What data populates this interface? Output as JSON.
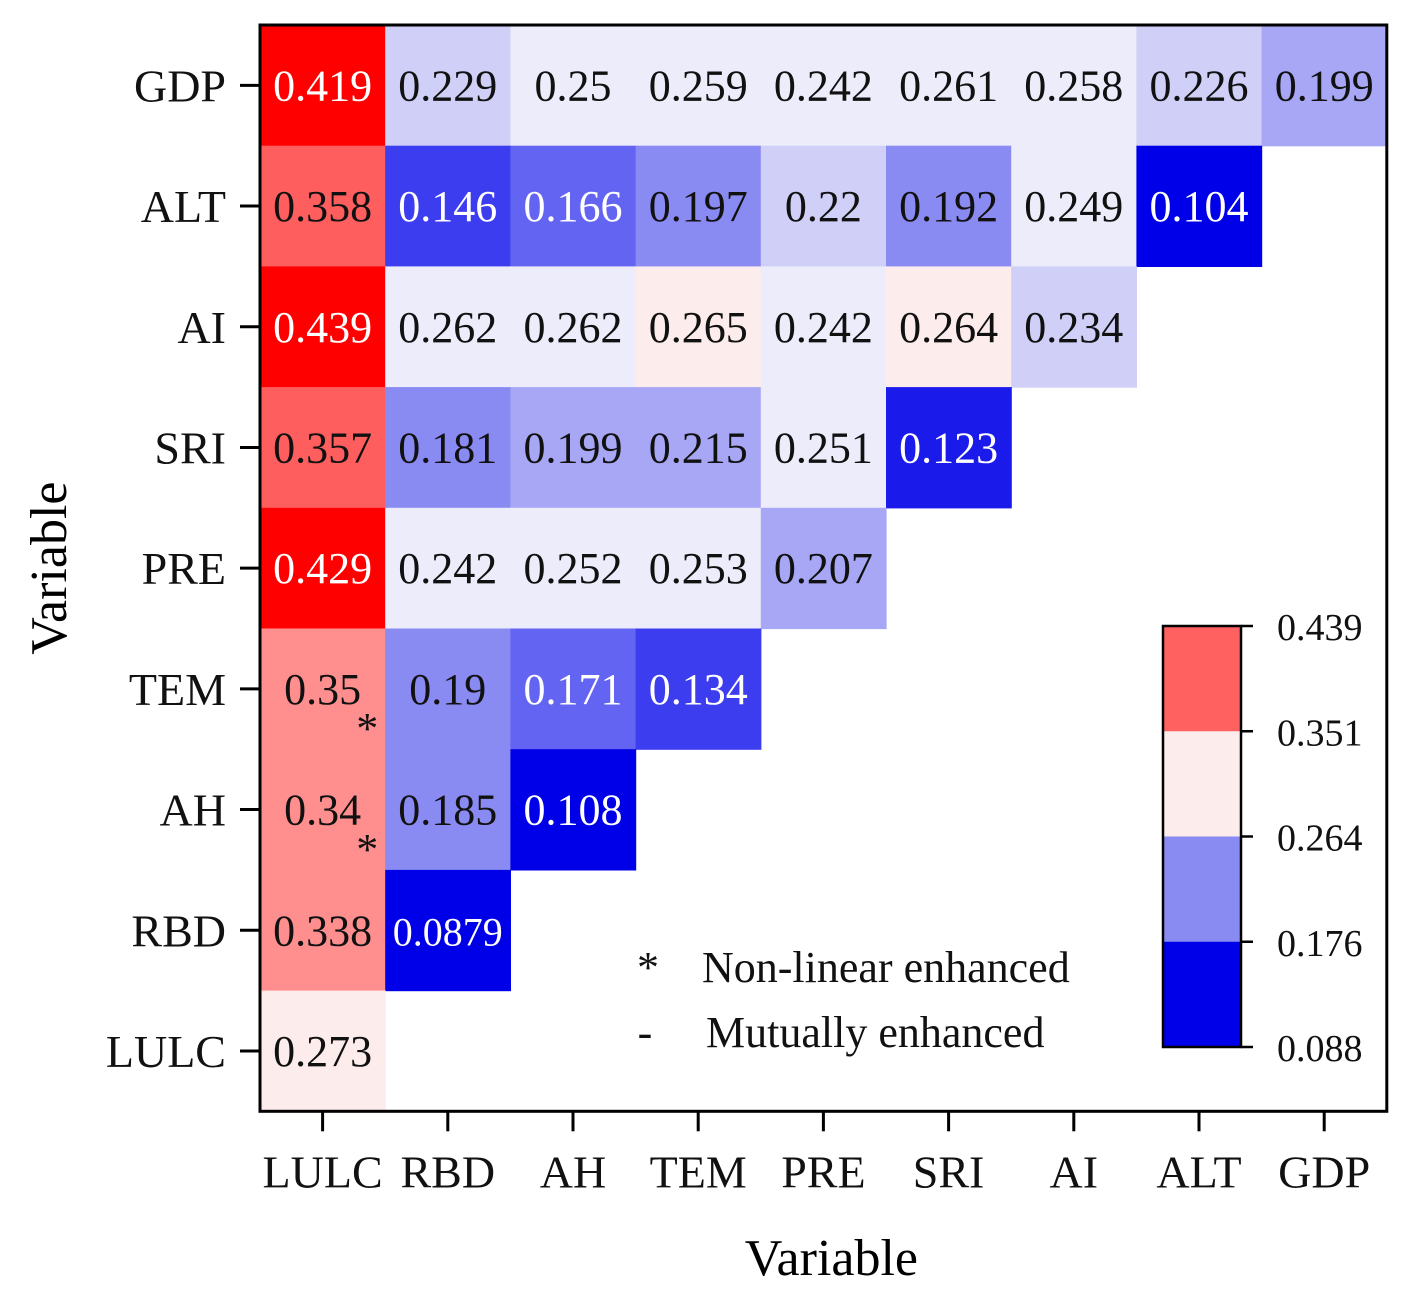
{
  "chart_data": {
    "type": "heatmap",
    "x_label": "Variable",
    "y_label": "Variable",
    "x_categories": [
      "LULC",
      "RBD",
      "AH",
      "TEM",
      "PRE",
      "SRI",
      "AI",
      "ALT",
      "GDP"
    ],
    "y_categories": [
      "GDP",
      "ALT",
      "AI",
      "SRI",
      "PRE",
      "TEM",
      "AH",
      "RBD",
      "LULC"
    ],
    "cells": [
      {
        "row": "GDP",
        "col": "LULC",
        "value": 0.419,
        "label": "0.419",
        "color": "#ff0000",
        "light_text": true
      },
      {
        "row": "GDP",
        "col": "RBD",
        "value": 0.229,
        "label": "0.229",
        "color": "#cfcff8"
      },
      {
        "row": "GDP",
        "col": "AH",
        "value": 0.25,
        "label": "0.25",
        "color": "#ececfb"
      },
      {
        "row": "GDP",
        "col": "TEM",
        "value": 0.259,
        "label": "0.259",
        "color": "#ececfb"
      },
      {
        "row": "GDP",
        "col": "PRE",
        "value": 0.242,
        "label": "0.242",
        "color": "#ececfb"
      },
      {
        "row": "GDP",
        "col": "SRI",
        "value": 0.261,
        "label": "0.261",
        "color": "#ececfb"
      },
      {
        "row": "GDP",
        "col": "AI",
        "value": 0.258,
        "label": "0.258",
        "color": "#ececfb"
      },
      {
        "row": "GDP",
        "col": "ALT",
        "value": 0.226,
        "label": "0.226",
        "color": "#cfcff8"
      },
      {
        "row": "GDP",
        "col": "GDP",
        "value": 0.199,
        "label": "0.199",
        "color": "#a7a7f5"
      },
      {
        "row": "ALT",
        "col": "LULC",
        "value": 0.358,
        "label": "0.358",
        "color": "#ff5e5e"
      },
      {
        "row": "ALT",
        "col": "RBD",
        "value": 0.146,
        "label": "0.146",
        "color": "#3d3df0",
        "light_text": true
      },
      {
        "row": "ALT",
        "col": "AH",
        "value": 0.166,
        "label": "0.166",
        "color": "#6464f2",
        "light_text": true
      },
      {
        "row": "ALT",
        "col": "TEM",
        "value": 0.197,
        "label": "0.197",
        "color": "#8a8af3"
      },
      {
        "row": "ALT",
        "col": "PRE",
        "value": 0.22,
        "label": "0.22",
        "color": "#cfcff8"
      },
      {
        "row": "ALT",
        "col": "SRI",
        "value": 0.192,
        "label": "0.192",
        "color": "#8a8af3"
      },
      {
        "row": "ALT",
        "col": "AI",
        "value": 0.249,
        "label": "0.249",
        "color": "#ececfb"
      },
      {
        "row": "ALT",
        "col": "ALT",
        "value": 0.104,
        "label": "0.104",
        "color": "#0000e8",
        "light_text": true
      },
      {
        "row": "AI",
        "col": "LULC",
        "value": 0.439,
        "label": "0.439",
        "color": "#ff0000",
        "light_text": true
      },
      {
        "row": "AI",
        "col": "RBD",
        "value": 0.262,
        "label": "0.262",
        "color": "#ececfb"
      },
      {
        "row": "AI",
        "col": "AH",
        "value": 0.262,
        "label": "0.262",
        "color": "#ececfb"
      },
      {
        "row": "AI",
        "col": "TEM",
        "value": 0.265,
        "label": "0.265",
        "color": "#fcecec"
      },
      {
        "row": "AI",
        "col": "PRE",
        "value": 0.242,
        "label": "0.242",
        "color": "#ececfb"
      },
      {
        "row": "AI",
        "col": "SRI",
        "value": 0.264,
        "label": "0.264",
        "color": "#fcecec"
      },
      {
        "row": "AI",
        "col": "AI",
        "value": 0.234,
        "label": "0.234",
        "color": "#cfcff8"
      },
      {
        "row": "SRI",
        "col": "LULC",
        "value": 0.357,
        "label": "0.357",
        "color": "#ff5e5e"
      },
      {
        "row": "SRI",
        "col": "RBD",
        "value": 0.181,
        "label": "0.181",
        "color": "#8a8af3"
      },
      {
        "row": "SRI",
        "col": "AH",
        "value": 0.199,
        "label": "0.199",
        "color": "#a7a7f5"
      },
      {
        "row": "SRI",
        "col": "TEM",
        "value": 0.215,
        "label": "0.215",
        "color": "#a7a7f5"
      },
      {
        "row": "SRI",
        "col": "PRE",
        "value": 0.251,
        "label": "0.251",
        "color": "#ececfb"
      },
      {
        "row": "SRI",
        "col": "SRI",
        "value": 0.123,
        "label": "0.123",
        "color": "#1a1aeb",
        "light_text": true
      },
      {
        "row": "PRE",
        "col": "LULC",
        "value": 0.429,
        "label": "0.429",
        "color": "#ff0000",
        "light_text": true
      },
      {
        "row": "PRE",
        "col": "RBD",
        "value": 0.242,
        "label": "0.242",
        "color": "#ececfb"
      },
      {
        "row": "PRE",
        "col": "AH",
        "value": 0.252,
        "label": "0.252",
        "color": "#ececfb"
      },
      {
        "row": "PRE",
        "col": "TEM",
        "value": 0.253,
        "label": "0.253",
        "color": "#ececfb"
      },
      {
        "row": "PRE",
        "col": "PRE",
        "value": 0.207,
        "label": "0.207",
        "color": "#a7a7f5"
      },
      {
        "row": "TEM",
        "col": "LULC",
        "value": 0.35,
        "label": "0.35",
        "color": "#ff8f8f",
        "marker": "*"
      },
      {
        "row": "TEM",
        "col": "RBD",
        "value": 0.19,
        "label": "0.19",
        "color": "#8a8af3"
      },
      {
        "row": "TEM",
        "col": "AH",
        "value": 0.171,
        "label": "0.171",
        "color": "#6464f2",
        "light_text": true
      },
      {
        "row": "TEM",
        "col": "TEM",
        "value": 0.134,
        "label": "0.134",
        "color": "#3d3df0",
        "light_text": true
      },
      {
        "row": "AH",
        "col": "LULC",
        "value": 0.34,
        "label": "0.34",
        "color": "#ff8f8f",
        "marker": "*"
      },
      {
        "row": "AH",
        "col": "RBD",
        "value": 0.185,
        "label": "0.185",
        "color": "#8a8af3"
      },
      {
        "row": "AH",
        "col": "AH",
        "value": 0.108,
        "label": "0.108",
        "color": "#0000e8",
        "light_text": true
      },
      {
        "row": "RBD",
        "col": "LULC",
        "value": 0.338,
        "label": "0.338",
        "color": "#ff8f8f"
      },
      {
        "row": "RBD",
        "col": "RBD",
        "value": 0.0879,
        "label": "0.0879",
        "color": "#0000e8",
        "light_text": true
      },
      {
        "row": "LULC",
        "col": "LULC",
        "value": 0.273,
        "label": "0.273",
        "color": "#fcecec"
      }
    ],
    "colorbar": {
      "tick_labels": [
        "0.439",
        "0.351",
        "0.264",
        "0.176",
        "0.088"
      ],
      "bands_top_to_bottom": [
        "#ff6060",
        "#fcecec",
        "#8a8af3",
        "#0000e8"
      ]
    },
    "legend": [
      {
        "symbol": "*",
        "label": "Non-linear enhanced"
      },
      {
        "symbol": "-",
        "label": "Mutually enhanced"
      }
    ]
  }
}
